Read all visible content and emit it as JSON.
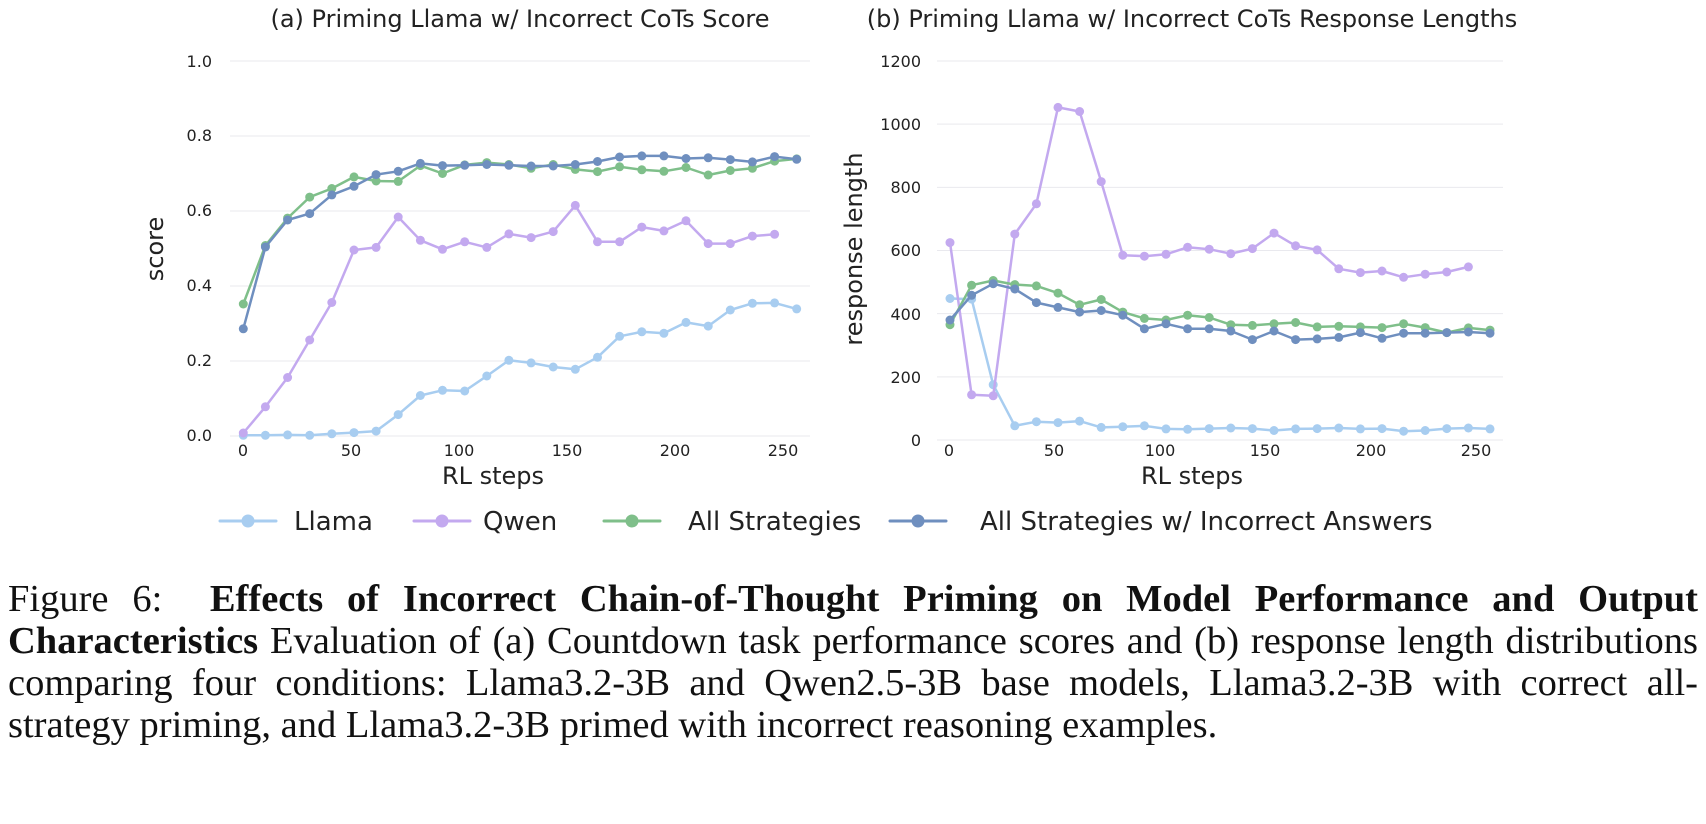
{
  "chart_data": [
    {
      "type": "line",
      "title": "(a) Priming Llama w/ Incorrect CoTs Score",
      "xlabel": "RL steps",
      "ylabel": "score",
      "xlim": [
        -6,
        256
      ],
      "ylim": [
        0,
        1.0
      ],
      "xticks": [
        "0",
        "50",
        "100",
        "150",
        "200",
        "250"
      ],
      "yticks": [
        "0.0",
        "0.2",
        "0.4",
        "0.6",
        "0.8",
        "1.0"
      ],
      "grid": true,
      "series": [
        {
          "name": "Llama",
          "x": [
            0,
            10,
            20,
            30,
            40,
            50,
            60,
            70,
            80,
            90,
            100,
            110,
            120,
            130,
            140,
            150,
            160,
            170,
            180,
            190,
            200,
            210,
            220,
            230,
            240,
            250
          ],
          "values": [
            0.002,
            0.002,
            0.003,
            0.002,
            0.006,
            0.009,
            0.013,
            0.057,
            0.108,
            0.122,
            0.12,
            0.16,
            0.202,
            0.195,
            0.184,
            0.178,
            0.21,
            0.266,
            0.278,
            0.274,
            0.303,
            0.293,
            0.336,
            0.354,
            0.355,
            0.339
          ]
        },
        {
          "name": "Qwen",
          "x": [
            0,
            10,
            20,
            30,
            40,
            50,
            60,
            70,
            80,
            90,
            100,
            110,
            120,
            130,
            140,
            150,
            160,
            170,
            180,
            190,
            200,
            210,
            220,
            230,
            240
          ],
          "values": [
            0.008,
            0.078,
            0.156,
            0.256,
            0.356,
            0.496,
            0.503,
            0.584,
            0.522,
            0.498,
            0.518,
            0.503,
            0.539,
            0.529,
            0.545,
            0.615,
            0.518,
            0.518,
            0.557,
            0.547,
            0.574,
            0.513,
            0.513,
            0.533,
            0.538
          ]
        },
        {
          "name": "All Strategies",
          "x": [
            0,
            10,
            20,
            30,
            40,
            50,
            60,
            70,
            80,
            90,
            100,
            110,
            120,
            130,
            140,
            150,
            160,
            170,
            180,
            190,
            200,
            210,
            220,
            230,
            240,
            250
          ],
          "values": [
            0.352,
            0.508,
            0.581,
            0.637,
            0.66,
            0.691,
            0.68,
            0.679,
            0.721,
            0.7,
            0.723,
            0.729,
            0.724,
            0.714,
            0.724,
            0.711,
            0.705,
            0.718,
            0.71,
            0.706,
            0.716,
            0.696,
            0.708,
            0.714,
            0.733,
            0.739
          ]
        },
        {
          "name": "All Strategies w/ Incorrect Answers",
          "x": [
            0,
            10,
            20,
            30,
            40,
            50,
            60,
            70,
            80,
            90,
            100,
            110,
            120,
            130,
            140,
            150,
            160,
            170,
            180,
            190,
            200,
            210,
            220,
            230,
            240,
            250
          ],
          "values": [
            0.286,
            0.504,
            0.576,
            0.593,
            0.643,
            0.666,
            0.697,
            0.706,
            0.727,
            0.721,
            0.722,
            0.724,
            0.722,
            0.72,
            0.72,
            0.724,
            0.732,
            0.744,
            0.747,
            0.747,
            0.74,
            0.742,
            0.737,
            0.731,
            0.745,
            0.738
          ]
        }
      ]
    },
    {
      "type": "line",
      "title": "(b) Priming Llama w/ Incorrect CoTs Response Lengths",
      "xlabel": "RL steps",
      "ylabel": "response length",
      "xlim": [
        -6,
        256
      ],
      "ylim": [
        0,
        1200
      ],
      "xticks": [
        "0",
        "50",
        "100",
        "150",
        "200",
        "250"
      ],
      "yticks": [
        "0",
        "200",
        "400",
        "600",
        "800",
        "1000",
        "1200"
      ],
      "grid": true,
      "series": [
        {
          "name": "Llama",
          "x": [
            0,
            10,
            20,
            30,
            40,
            50,
            60,
            70,
            80,
            90,
            100,
            110,
            120,
            130,
            140,
            150,
            160,
            170,
            180,
            190,
            200,
            210,
            220,
            230,
            240,
            250
          ],
          "values": [
            448,
            446,
            175,
            45,
            58,
            55,
            60,
            40,
            42,
            45,
            35,
            34,
            36,
            38,
            36,
            30,
            35,
            36,
            38,
            35,
            36,
            28,
            30,
            36,
            38,
            35
          ]
        },
        {
          "name": "Qwen",
          "x": [
            0,
            10,
            20,
            30,
            40,
            50,
            60,
            70,
            80,
            90,
            100,
            110,
            120,
            130,
            140,
            150,
            160,
            170,
            180,
            190,
            200,
            210,
            220,
            230,
            240
          ],
          "values": [
            625,
            143,
            140,
            652,
            748,
            1053,
            1040,
            818,
            585,
            582,
            588,
            610,
            604,
            590,
            606,
            655,
            615,
            602,
            542,
            530,
            535,
            515,
            525,
            532,
            548
          ]
        },
        {
          "name": "All Strategies",
          "x": [
            0,
            10,
            20,
            30,
            40,
            50,
            60,
            70,
            80,
            90,
            100,
            110,
            120,
            130,
            140,
            150,
            160,
            170,
            180,
            190,
            200,
            210,
            220,
            230,
            240,
            250
          ],
          "values": [
            365,
            490,
            505,
            492,
            488,
            465,
            428,
            445,
            405,
            385,
            380,
            395,
            388,
            365,
            363,
            368,
            372,
            358,
            360,
            358,
            356,
            368,
            356,
            340,
            355,
            348
          ]
        },
        {
          "name": "All Strategies w/ Incorrect Answers",
          "x": [
            0,
            10,
            20,
            30,
            40,
            50,
            60,
            70,
            80,
            90,
            100,
            110,
            120,
            130,
            140,
            150,
            160,
            170,
            180,
            190,
            200,
            210,
            220,
            230,
            240,
            250
          ],
          "values": [
            380,
            458,
            495,
            478,
            435,
            420,
            405,
            410,
            395,
            352,
            368,
            352,
            352,
            345,
            318,
            345,
            318,
            320,
            325,
            340,
            322,
            338,
            338,
            340,
            342,
            338
          ]
        }
      ]
    }
  ],
  "legend": [
    {
      "label": "Llama",
      "color": "#a8cdf0"
    },
    {
      "label": "Qwen",
      "color": "#c3a9ef"
    },
    {
      "label": "All Strategies",
      "color": "#7fbf8a"
    },
    {
      "label": "All Strategies w/ Incorrect Answers",
      "color": "#6f8fbf"
    }
  ],
  "caption": {
    "label": "Figure 6:",
    "bold": "Effects of Incorrect Chain-of-Thought Priming on Model Performance and Output Characteristics",
    "text": "Evaluation of (a) Countdown task performance scores and (b) response length distributions comparing four conditions: Llama3.2-3B and Qwen2.5-3B base models, Llama3.2-3B with correct all-strategy priming, and Llama3.2-3B primed with incorrect reasoning examples."
  }
}
